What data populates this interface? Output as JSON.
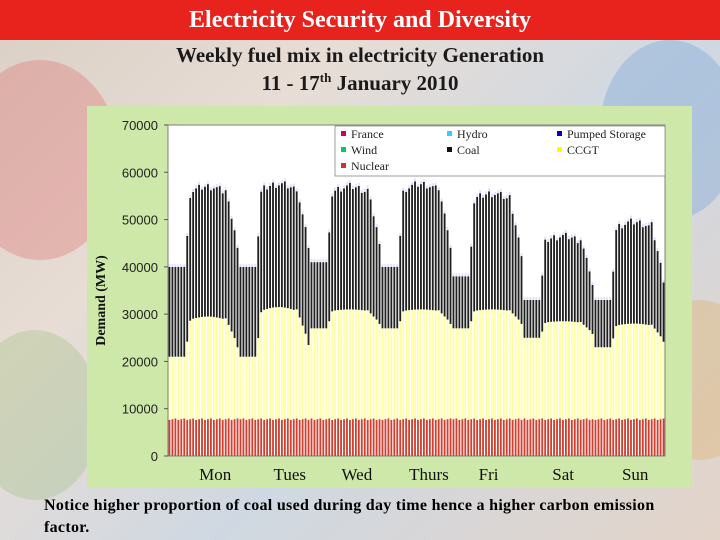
{
  "slide": {
    "title": "Electricity Security and Diversity",
    "subtitle_line1": "Weekly fuel mix in electricity Generation",
    "subtitle_line2_pre": "11 - 17",
    "subtitle_line2_sup": "th",
    "subtitle_line2_post": " January 2010",
    "note": "Notice higher proportion of coal used during day time hence a higher carbon emission factor."
  },
  "chart_data": {
    "type": "bar",
    "stacked": true,
    "ylabel": "Demand (MW)",
    "ylim": [
      0,
      70000
    ],
    "yticks": [
      0,
      10000,
      20000,
      30000,
      40000,
      50000,
      60000,
      70000
    ],
    "ytick_labels": [
      "0",
      "10000",
      "20000",
      "30000",
      "40000",
      "50000",
      "60000",
      "70000"
    ],
    "day_labels": [
      "Mon",
      "Tues",
      "Wed",
      "Thurs",
      "Fri",
      "Sat",
      "Sun"
    ],
    "legend": [
      {
        "name": "France",
        "color": "#cc0066"
      },
      {
        "name": "Hydro",
        "color": "#33ccff"
      },
      {
        "name": "Pumped Storage",
        "color": "#0000cc"
      },
      {
        "name": "Wind",
        "color": "#00cc66"
      },
      {
        "name": "Coal",
        "color": "#111111"
      },
      {
        "name": "CCGT",
        "color": "#ffff00"
      },
      {
        "name": "Nuclear",
        "color": "#cc3333"
      }
    ],
    "legend_position": "top-right",
    "series_colors": {
      "nuclear": "#d04030",
      "ccgt": "#ffffa8",
      "coal": "#202020",
      "top": "#ffffff"
    },
    "half_hour_points_per_day": 24,
    "daily_profile": [
      {
        "day": "Mon",
        "min": 40000,
        "max": 57000,
        "ccgt_min": 21000,
        "ccgt_max": 29500
      },
      {
        "day": "Tues",
        "min": 40000,
        "max": 57500,
        "ccgt_min": 21000,
        "ccgt_max": 31500
      },
      {
        "day": "Wed",
        "min": 41000,
        "max": 57000,
        "ccgt_min": 27000,
        "ccgt_max": 31000
      },
      {
        "day": "Thurs",
        "min": 40000,
        "max": 57500,
        "ccgt_min": 27000,
        "ccgt_max": 31000
      },
      {
        "day": "Fri",
        "min": 38000,
        "max": 55500,
        "ccgt_min": 27000,
        "ccgt_max": 31000
      },
      {
        "day": "Sat",
        "min": 33000,
        "max": 46500,
        "ccgt_min": 25000,
        "ccgt_max": 28500
      },
      {
        "day": "Sun",
        "min": 33000,
        "max": 49500,
        "ccgt_min": 23000,
        "ccgt_max": 28000
      }
    ],
    "nuclear_level": 7800,
    "grid": false
  }
}
